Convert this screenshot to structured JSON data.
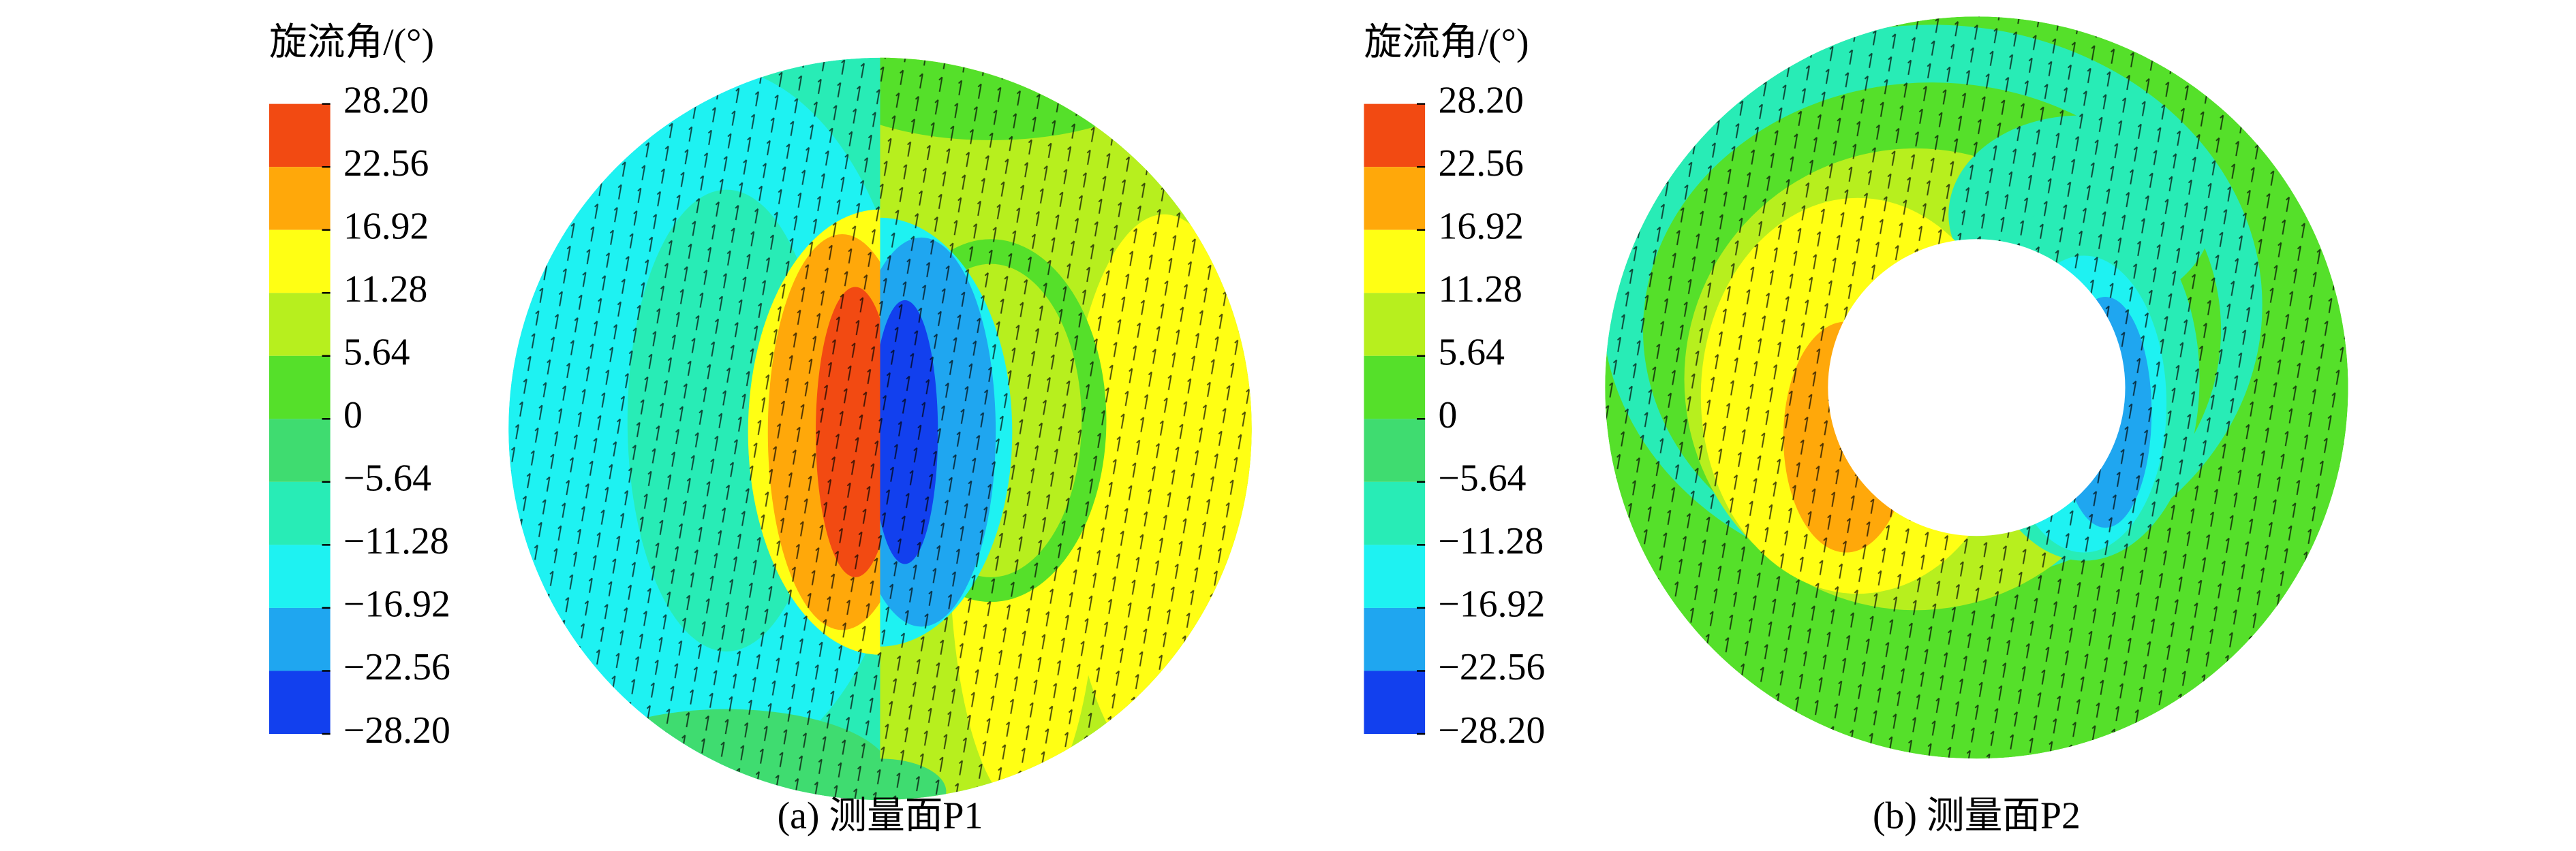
{
  "panels": [
    {
      "colorbar": {
        "label": "旋流角/(°)",
        "levels": [
          {
            "value": 28.2,
            "label": "28.20"
          },
          22.56,
          16.92,
          11.28,
          5.64,
          0,
          {
            "value": -5.64,
            "label": "−5.64"
          },
          {
            "value": -11.28,
            "label": "−11.28"
          },
          {
            "value": -16.92,
            "label": "−16.92"
          },
          {
            "value": -22.56,
            "label": "−22.56"
          },
          {
            "value": -28.2,
            "label": "−28.20"
          }
        ],
        "colors": [
          "#f24a12",
          "#ffa80a",
          "#ffff14",
          "#b7ef1e",
          "#55e02a",
          "#3fdc70",
          "#28ecb6",
          "#1ef2f2",
          "#1fa6f0",
          "#1240ee"
        ]
      },
      "caption": "(a) 测量面P1"
    },
    {
      "colorbar": {
        "label": "旋流角/(°)",
        "levels": [
          {
            "value": 28.2,
            "label": "28.20"
          },
          22.56,
          16.92,
          11.28,
          5.64,
          0,
          {
            "value": -5.64,
            "label": "−5.64"
          },
          {
            "value": -11.28,
            "label": "−11.28"
          },
          {
            "value": -16.92,
            "label": "−16.92"
          },
          {
            "value": -22.56,
            "label": "−22.56"
          },
          {
            "value": -28.2,
            "label": "−28.20"
          }
        ],
        "colors": [
          "#f24a12",
          "#ffa80a",
          "#ffff14",
          "#b7ef1e",
          "#55e02a",
          "#3fdc70",
          "#28ecb6",
          "#1ef2f2",
          "#1fa6f0",
          "#1240ee"
        ]
      },
      "caption": "(b) 测量面P2"
    }
  ]
}
